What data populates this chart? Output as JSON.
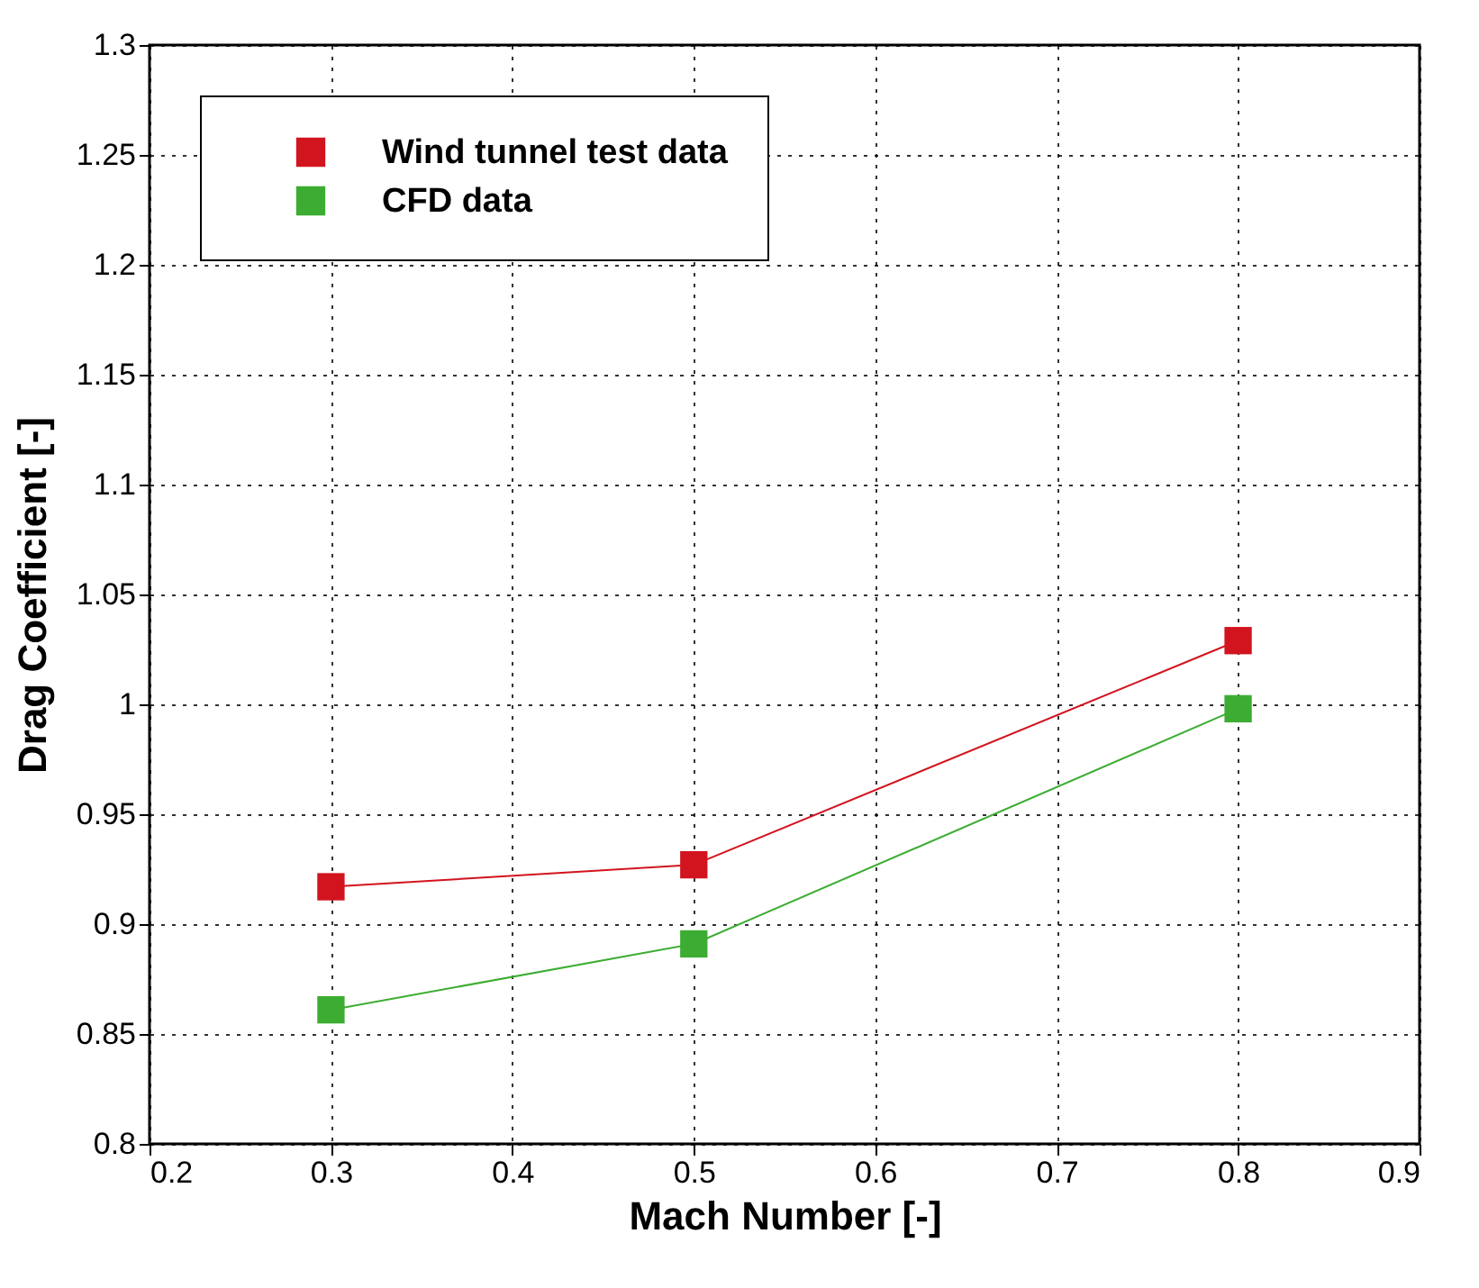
{
  "chart_data": {
    "type": "line",
    "xlabel": "Mach Number [-]",
    "ylabel": "Drag Coefficient [-]",
    "x": [
      0.3,
      0.5,
      0.8
    ],
    "series": [
      {
        "name": "Wind tunnel test data",
        "color": "#d2141e",
        "values": [
          0.917,
          0.927,
          1.029
        ]
      },
      {
        "name": "CFD data",
        "color": "#3cad32",
        "values": [
          0.861,
          0.891,
          0.998
        ]
      }
    ],
    "xlim": [
      0.2,
      0.9
    ],
    "xticks": [
      0.2,
      0.3,
      0.4,
      0.5,
      0.6,
      0.7,
      0.8,
      0.9
    ],
    "ylim": [
      0.8,
      1.3
    ],
    "yticks": [
      0.8,
      0.85,
      0.9,
      0.95,
      1,
      1.05,
      1.1,
      1.15,
      1.2,
      1.25,
      1.3
    ],
    "grid": true,
    "legend": "top left",
    "marker": "square",
    "line_style": "solid"
  }
}
